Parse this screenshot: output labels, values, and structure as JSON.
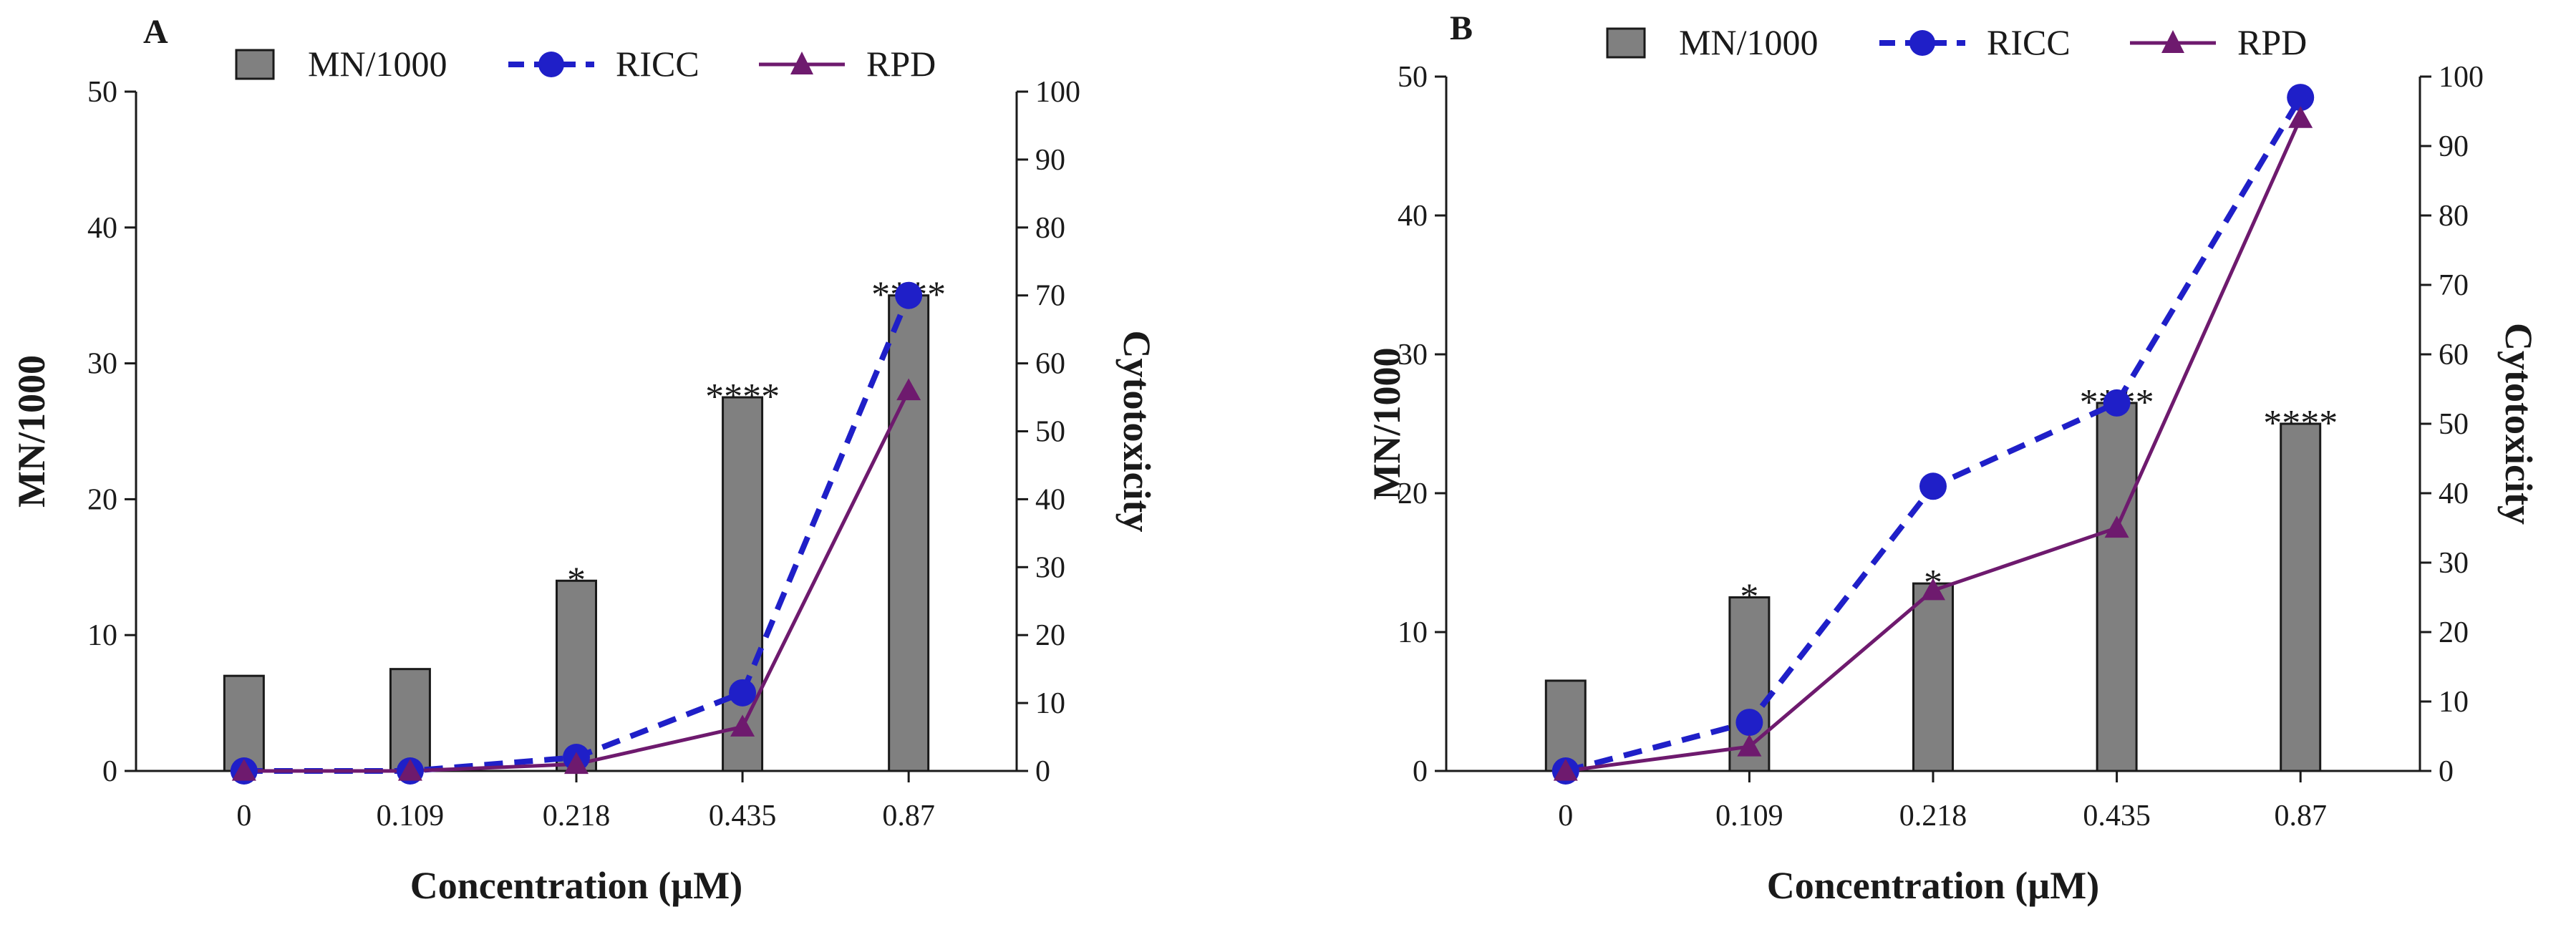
{
  "chart_data": [
    {
      "type": "bar+line",
      "panel_label": "A",
      "categories": [
        "0",
        "0.109",
        "0.218",
        "0.435",
        "0.87"
      ],
      "xlabel": "Concentration (µM)",
      "ylabel_left": "MN/1000",
      "ylabel_right": "Cytotoxicity",
      "ylim_left": [
        0,
        50
      ],
      "yticks_left": [
        "0",
        "10",
        "20",
        "30",
        "40",
        "50"
      ],
      "ylim_right": [
        0,
        100
      ],
      "yticks_right": [
        "0",
        "10",
        "20",
        "30",
        "40",
        "50",
        "60",
        "70",
        "80",
        "90",
        "100"
      ],
      "legend": [
        "MN/1000",
        "RICC",
        "RPD"
      ],
      "legend_position": "top",
      "series": [
        {
          "name": "MN/1000",
          "type": "bar",
          "axis": "left",
          "values": [
            7,
            7.5,
            14,
            27.5,
            35
          ]
        },
        {
          "name": "RICC",
          "type": "line",
          "style": "dashed",
          "marker": "circle",
          "axis": "right",
          "values": [
            0,
            0,
            2,
            11.5,
            70
          ]
        },
        {
          "name": "RPD",
          "type": "line",
          "style": "solid",
          "marker": "triangle",
          "axis": "right",
          "values": [
            0,
            0,
            1,
            6.5,
            56
          ]
        }
      ],
      "significance": [
        "",
        "",
        "*",
        "****",
        "****"
      ]
    },
    {
      "type": "bar+line",
      "panel_label": "B",
      "categories": [
        "0",
        "0.109",
        "0.218",
        "0.435",
        "0.87"
      ],
      "xlabel": "Concentration (µM)",
      "ylabel_left": "MN/1000",
      "ylabel_right": "Cytotoxicity",
      "ylim_left": [
        0,
        50
      ],
      "yticks_left": [
        "0",
        "10",
        "20",
        "30",
        "40",
        "50"
      ],
      "ylim_right": [
        0,
        100
      ],
      "yticks_right": [
        "0",
        "10",
        "20",
        "30",
        "40",
        "50",
        "60",
        "70",
        "80",
        "90",
        "100"
      ],
      "legend": [
        "MN/1000",
        "RICC",
        "RPD"
      ],
      "legend_position": "top",
      "series": [
        {
          "name": "MN/1000",
          "type": "bar",
          "axis": "left",
          "values": [
            6.5,
            12.5,
            13.5,
            26.5,
            25
          ]
        },
        {
          "name": "RICC",
          "type": "line",
          "style": "dashed",
          "marker": "circle",
          "axis": "right",
          "values": [
            0,
            7,
            41,
            53,
            97
          ]
        },
        {
          "name": "RPD",
          "type": "line",
          "style": "solid",
          "marker": "triangle",
          "axis": "right",
          "values": [
            0,
            3.5,
            26,
            35,
            94
          ]
        }
      ],
      "significance": [
        "",
        "*",
        "*",
        "****",
        "****"
      ]
    }
  ],
  "colors": {
    "bar_fill": "#808080",
    "bar_stroke": "#1a1a1a",
    "ricc": "#1f1fc8",
    "rpd": "#6e1a6e",
    "axis": "#1a1a1a"
  }
}
